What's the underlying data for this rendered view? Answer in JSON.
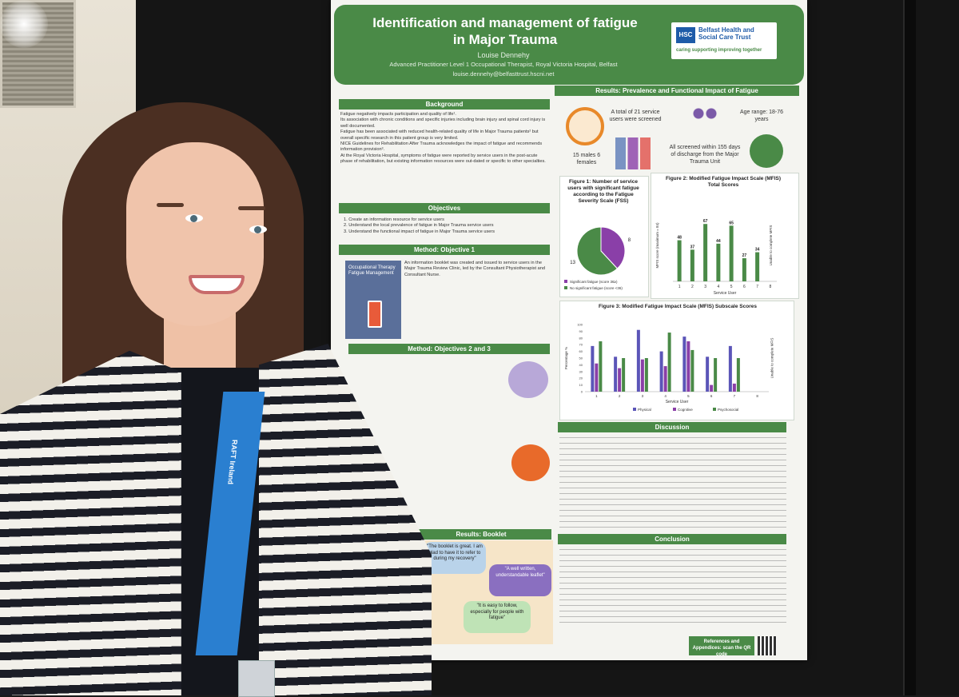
{
  "poster": {
    "title": "Identification and management of fatigue in Major Trauma",
    "author": "Louise Dennehy",
    "role": "Advanced Practitioner Level 1 Occupational Therapist, Royal Victoria Hospital, Belfast",
    "email": "louise.dennehy@belfasttrust.hscni.net",
    "logo": {
      "mark": "HSC",
      "name": "Belfast Health and Social Care Trust",
      "tagline": "caring supporting improving together"
    },
    "sections": {
      "background": "Background",
      "objectives": "Objectives",
      "method1": "Method: Objective 1",
      "method23": "Method: Objectives 2 and 3",
      "booklet": "Results: Booklet",
      "results": "Results: Prevalence and Functional Impact of Fatigue",
      "discussion": "Discussion",
      "conclusion": "Conclusion"
    },
    "background_points": [
      "Fatigue negatively impacts participation and quality of life¹.",
      "Its association with chronic conditions and specific injuries including brain injury and spinal cord injury is well documented.",
      "Fatigue has been associated with reduced health-related quality of life in Major Trauma patients² but overall specific research in this patient group is very limited.",
      "NICE Guidelines for Rehabilitation After Trauma acknowledges the impact of fatigue and recommends information provision³.",
      "At the Royal Victoria Hospital, symptoms of fatigue were reported by service users in the post-acute phase of rehabilitation, but existing information resources were out-dated or specific to other specialties."
    ],
    "objectives": [
      "1. Create an information resource for service users",
      "2. Understand the local prevalence of fatigue in Major Trauma service users",
      "3. Understand the functional impact of fatigue in Major Trauma service users"
    ],
    "method1_text": "An information booklet was created and issued to service users in the Major Trauma Review Clinic, led by the Consultant Physiotherapist and Consultant Nurse.",
    "method1_booklet": "Occupational Therapy Fatigue Management",
    "stats": {
      "total": "A total of 21 service users were screened",
      "age": "Age range: 18-76 years",
      "gender": "15 males 6 females",
      "discharge": "All screened within 155 days of discharge from the Major Trauma Unit"
    },
    "fig1_title": "Figure 1: Number of service users with significant fatigue according to the Fatigue Severity Scale (FSS)",
    "fig2_title": "Figure 2: Modified Fatigue Impact Scale (MFIS) Total Scores",
    "fig3_title": "Figure 3: Modified Fatigue Impact Scale (MFIS) Subscale Scores",
    "quotes": [
      "\"The booklet is great. I am glad to have it to refer to during my recovery\"",
      "\"A well written, understandable leaflet\"",
      "\"It is easy to follow, especially for people with fatigue\""
    ],
    "references": "References and Appendices: scan the QR code"
  },
  "chart_data": [
    {
      "type": "pie",
      "categories": [
        "Significant fatigue (score 36≥)",
        "No significant fatigue (score <36)"
      ],
      "values": [
        8,
        13
      ],
      "colors": [
        "#8a3fa8",
        "#4a8a47"
      ]
    },
    {
      "type": "bar",
      "categories": [
        "1",
        "2",
        "3",
        "4",
        "5",
        "6",
        "7",
        "8"
      ],
      "values": [
        48,
        37,
        67,
        44,
        65,
        27,
        34,
        null
      ],
      "ylabel": "MFIS score (maximum = 84)",
      "xlabel": "Service User",
      "ylim": [
        0,
        84
      ],
      "note": "Unable to complete MFIS",
      "colors": [
        "#4a8a47"
      ]
    },
    {
      "type": "bar",
      "categories": [
        "1",
        "2",
        "3",
        "4",
        "5",
        "6",
        "7",
        "8"
      ],
      "series": [
        {
          "name": "Physical",
          "values": [
            68,
            52,
            92,
            60,
            82,
            52,
            68,
            null
          ]
        },
        {
          "name": "Cognitive",
          "values": [
            42,
            35,
            48,
            38,
            75,
            10,
            12,
            null
          ]
        },
        {
          "name": "Psychosocial",
          "values": [
            75,
            50,
            50,
            88,
            62,
            50,
            50,
            null
          ]
        }
      ],
      "ylabel": "Percentage %",
      "xlabel": "Service User",
      "ylim": [
        0,
        100
      ],
      "note": "Unable to complete MFIS",
      "colors": [
        "#5b55b8",
        "#8a3fa8",
        "#4a8a47"
      ]
    }
  ],
  "lanyard": {
    "text": "RAFT Ireland"
  }
}
